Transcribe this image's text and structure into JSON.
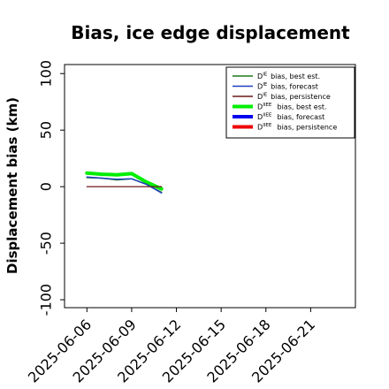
{
  "chart_data": {
    "type": "line",
    "title": "Bias, ice edge displacement",
    "xlabel": "",
    "ylabel": "Displacement bias (km)",
    "xlim": [
      "2025-06-04T12:00",
      "2025-06-24T00:00"
    ],
    "ylim": [
      -107,
      108
    ],
    "yticks": [
      100,
      50,
      0,
      -50,
      -100
    ],
    "xticks": [
      {
        "label": "2025-06-06",
        "date": "2025-06-06",
        "color": "#000000"
      },
      {
        "label": "2025-06-09",
        "date": "2025-06-09",
        "color": "#000000"
      },
      {
        "label": "2025-06-12",
        "date": "2025-06-12",
        "color": "#1e7b1e"
      },
      {
        "label": "2025-06-15",
        "date": "2025-06-15",
        "color": "#000000"
      },
      {
        "label": "2025-06-18",
        "date": "2025-06-18",
        "color": "#000000"
      },
      {
        "label": "2025-06-21",
        "date": "2025-06-21",
        "color": "#000000"
      }
    ],
    "grid": false,
    "legend_position": "top-right",
    "series": [
      {
        "key": "d_ie_best",
        "sup": "IE",
        "label": "bias, best est.",
        "color": "#1a7a1a",
        "width": 1.5,
        "x": [
          "2025-06-06",
          "2025-06-07",
          "2025-06-08",
          "2025-06-09",
          "2025-06-10",
          "2025-06-11"
        ],
        "y": [
          8,
          7.5,
          6,
          7,
          2,
          -5
        ]
      },
      {
        "key": "d_ie_forecast",
        "sup": "IE",
        "label": "bias, forecast",
        "color": "#1f3fbf",
        "width": 1.5,
        "x": [
          "2025-06-06",
          "2025-06-07",
          "2025-06-08",
          "2025-06-09",
          "2025-06-10",
          "2025-06-11"
        ],
        "y": [
          8.5,
          7.5,
          6.5,
          7,
          2,
          -5.5
        ]
      },
      {
        "key": "d_ie_persistence",
        "sup": "IE",
        "label": "bias, persistence",
        "color": "#6b1a1a",
        "width": 1.2,
        "x": [
          "2025-06-06",
          "2025-06-11"
        ],
        "y": [
          0,
          0
        ]
      },
      {
        "key": "d_iie_best",
        "sup": "IIEE",
        "label": "bias, best est.",
        "color": "#00ee00",
        "width": 4,
        "x": [
          "2025-06-06",
          "2025-06-07",
          "2025-06-08",
          "2025-06-09",
          "2025-06-10",
          "2025-06-11"
        ],
        "y": [
          12,
          11,
          10.5,
          11.5,
          4,
          -2
        ]
      },
      {
        "key": "d_iie_forecast",
        "sup": "IIEE",
        "label": "bias, forecast",
        "color": "#0000ee",
        "width": 4,
        "x": [],
        "y": []
      },
      {
        "key": "d_iie_persistence",
        "sup": "IIEE",
        "label": "bias, persistence",
        "color": "#ee0000",
        "width": 4,
        "x": [],
        "y": []
      }
    ]
  }
}
